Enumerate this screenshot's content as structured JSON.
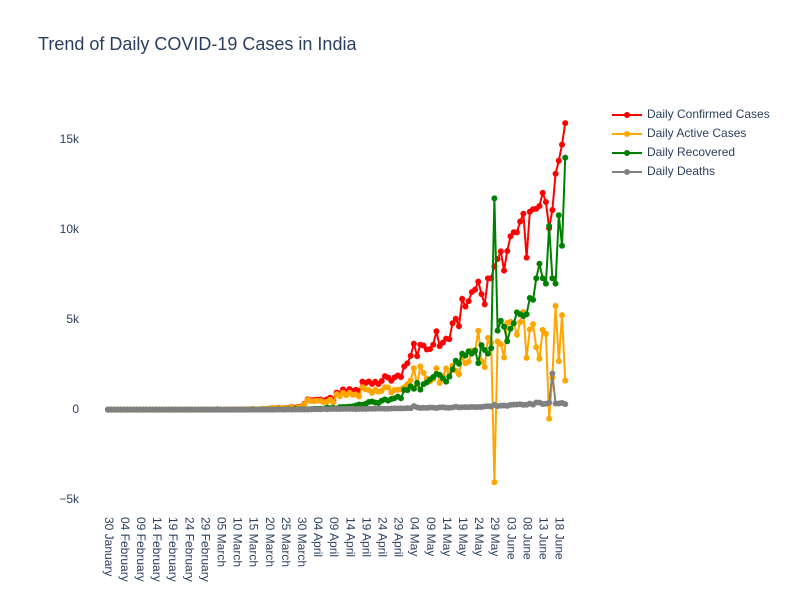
{
  "chart_data": {
    "type": "line",
    "title": "Trend of Daily COVID-19 Cases in India",
    "categories": [
      "30 January",
      null,
      null,
      null,
      null,
      "04 February",
      null,
      null,
      null,
      null,
      "09 February",
      null,
      null,
      null,
      null,
      "14 February",
      null,
      null,
      null,
      null,
      "19 February",
      null,
      null,
      null,
      null,
      "24 February",
      null,
      null,
      null,
      null,
      "29 February",
      null,
      null,
      null,
      null,
      "05 March",
      null,
      null,
      null,
      null,
      "10 March",
      null,
      null,
      null,
      null,
      "15 March",
      null,
      null,
      null,
      null,
      "20 March",
      null,
      null,
      null,
      null,
      "25 March",
      null,
      null,
      null,
      null,
      "30 March",
      null,
      null,
      null,
      null,
      "04 April",
      null,
      null,
      null,
      null,
      "09 April",
      null,
      null,
      null,
      null,
      "14 April",
      null,
      null,
      null,
      null,
      "19 April",
      null,
      null,
      null,
      null,
      "24 April",
      null,
      null,
      null,
      null,
      "29 April",
      null,
      null,
      null,
      null,
      "04 May",
      null,
      null,
      null,
      null,
      "09 May",
      null,
      null,
      null,
      null,
      "14 May",
      null,
      null,
      null,
      null,
      "19 May",
      null,
      null,
      null,
      null,
      "24 May",
      null,
      null,
      null,
      null,
      "29 May",
      null,
      null,
      null,
      null,
      "03 June",
      null,
      null,
      null,
      null,
      "08 June",
      null,
      null,
      null,
      null,
      "13 June",
      null,
      null,
      null,
      null,
      "18 June",
      null,
      null
    ],
    "series": [
      {
        "name": "Daily Confirmed Cases",
        "color": "#ff0000",
        "values": [
          1,
          0,
          0,
          1,
          1,
          0,
          0,
          0,
          0,
          0,
          0,
          0,
          0,
          0,
          0,
          0,
          0,
          0,
          0,
          0,
          0,
          0,
          0,
          0,
          0,
          0,
          0,
          0,
          0,
          0,
          0,
          0,
          1,
          1,
          22,
          1,
          2,
          3,
          5,
          9,
          15,
          8,
          10,
          10,
          11,
          26,
          15,
          11,
          37,
          34,
          50,
          88,
          69,
          102,
          64,
          89,
          88,
          161,
          105,
          156,
          170,
          325,
          571,
          520,
          533,
          555,
          559,
          491,
          567,
          661,
          526,
          944,
          911,
          1123,
          991,
          1140,
          1041,
          1093,
          1048,
          1556,
          1478,
          1564,
          1426,
          1544,
          1425,
          1588,
          1860,
          1775,
          1602,
          1790,
          1897,
          1813,
          2403,
          2576,
          2988,
          3656,
          2971,
          3602,
          3560,
          3336,
          3363,
          3605,
          4353,
          3528,
          3722,
          3942,
          3916,
          4798,
          5049,
          4628,
          6154,
          5720,
          6023,
          6536,
          6667,
          7111,
          6414,
          5843,
          7293,
          7300,
          7964,
          8364,
          8789,
          7723,
          8812,
          9633,
          9851,
          9847,
          10448,
          10884,
          8442,
          10989,
          11128,
          11157,
          11314,
          12041,
          11533,
          10072,
          11086,
          13106,
          13827,
          14721,
          15918
        ]
      },
      {
        "name": "Daily Active Cases",
        "color": "#ffa500",
        "values": [
          1,
          0,
          0,
          1,
          1,
          0,
          0,
          0,
          0,
          0,
          0,
          0,
          0,
          0,
          0,
          0,
          0,
          0,
          0,
          0,
          0,
          0,
          0,
          0,
          0,
          0,
          0,
          0,
          0,
          0,
          0,
          0,
          1,
          1,
          22,
          1,
          2,
          3,
          5,
          9,
          15,
          8,
          9,
          10,
          10,
          23,
          15,
          5,
          37,
          33,
          46,
          88,
          63,
          88,
          60,
          81,
          68,
          154,
          69,
          137,
          140,
          299,
          536,
          479,
          464,
          492,
          492,
          405,
          438,
          546,
          391,
          854,
          742,
          936,
          804,
          931,
          824,
          840,
          729,
          1243,
          1121,
          1092,
          928,
          1105,
          997,
          1044,
          1243,
          1227,
          953,
          1087,
          1105,
          1113,
          1240,
          1410,
          1621,
          2300,
          1370,
          2403,
          2042,
          1728,
          1578,
          1690,
          2288,
          1476,
          1851,
          2287,
          1983,
          2445,
          2174,
          1959,
          2907,
          2578,
          2657,
          3275,
          3250,
          4383,
          2683,
          2363,
          3987,
          3709,
          -4036,
          3783,
          3637,
          2893,
          4808,
          4873,
          4778,
          4161,
          4851,
          5423,
          2876,
          4458,
          4749,
          3461,
          2828,
          4430,
          4208,
          -508,
          1783,
          5765,
          2691,
          5246,
          1612
        ]
      },
      {
        "name": "Daily Recovered",
        "color": "#008000",
        "values": [
          0,
          0,
          0,
          0,
          0,
          0,
          0,
          0,
          0,
          0,
          0,
          0,
          0,
          0,
          0,
          0,
          0,
          0,
          0,
          0,
          0,
          0,
          0,
          0,
          0,
          0,
          0,
          0,
          0,
          0,
          0,
          0,
          0,
          0,
          0,
          0,
          0,
          0,
          0,
          0,
          0,
          0,
          0,
          0,
          0,
          3,
          0,
          5,
          0,
          0,
          3,
          0,
          3,
          12,
          3,
          5,
          17,
          2,
          33,
          13,
          22,
          21,
          15,
          27,
          46,
          44,
          46,
          44,
          107,
          81,
          97,
          57,
          135,
          144,
          149,
          166,
          179,
          227,
          282,
          270,
          321,
          425,
          448,
          393,
          367,
          489,
          568,
          499,
          591,
          634,
          722,
          629,
          1094,
          1083,
          1295,
          1161,
          1475,
          1110,
          1414,
          1511,
          1669,
          1804,
          1978,
          1930,
          1737,
          1555,
          1829,
          2233,
          2715,
          2548,
          3113,
          3002,
          3234,
          3113,
          3280,
          2581,
          3585,
          3310,
          3111,
          3416,
          11735,
          4388,
          4929,
          4600,
          3800,
          4500,
          4800,
          5400,
          5300,
          5200,
          5300,
          6200,
          6100,
          7300,
          8100,
          7300,
          7000,
          10200,
          7300,
          7000,
          10800,
          9100,
          14000
        ]
      },
      {
        "name": "Daily Deaths",
        "color": "#808080",
        "values": [
          0,
          0,
          0,
          0,
          0,
          0,
          0,
          0,
          0,
          0,
          0,
          0,
          0,
          0,
          0,
          0,
          0,
          0,
          0,
          0,
          0,
          0,
          0,
          0,
          0,
          0,
          0,
          0,
          0,
          0,
          0,
          0,
          0,
          0,
          0,
          0,
          0,
          0,
          0,
          0,
          0,
          0,
          1,
          0,
          1,
          0,
          0,
          1,
          0,
          1,
          1,
          0,
          3,
          2,
          1,
          3,
          3,
          5,
          3,
          6,
          8,
          5,
          20,
          14,
          23,
          19,
          21,
          42,
          22,
          34,
          38,
          33,
          34,
          43,
          38,
          43,
          38,
          26,
          37,
          43,
          36,
          47,
          50,
          46,
          61,
          55,
          49,
          49,
          58,
          69,
          70,
          71,
          69,
          83,
          72,
          195,
          126,
          89,
          104,
          97,
          116,
          111,
          87,
          122,
          134,
          100,
          104,
          120,
          160,
          121,
          134,
          140,
          132,
          148,
          137,
          147,
          146,
          170,
          195,
          175,
          265,
          193,
          223,
          230,
          204,
          260,
          273,
          286,
          297,
          261,
          266,
          331,
          279,
          396,
          386,
          311,
          325,
          380,
          2003,
          341,
          336,
          375,
          306
        ]
      }
    ],
    "ylim": [
      -5800,
      17200
    ],
    "yticks": [
      {
        "value": -5000,
        "label": "−5k"
      },
      0,
      {
        "value": 5000,
        "label": "5k"
      },
      {
        "value": 10000,
        "label": "10k"
      },
      {
        "value": 15000,
        "label": "15k"
      }
    ]
  }
}
